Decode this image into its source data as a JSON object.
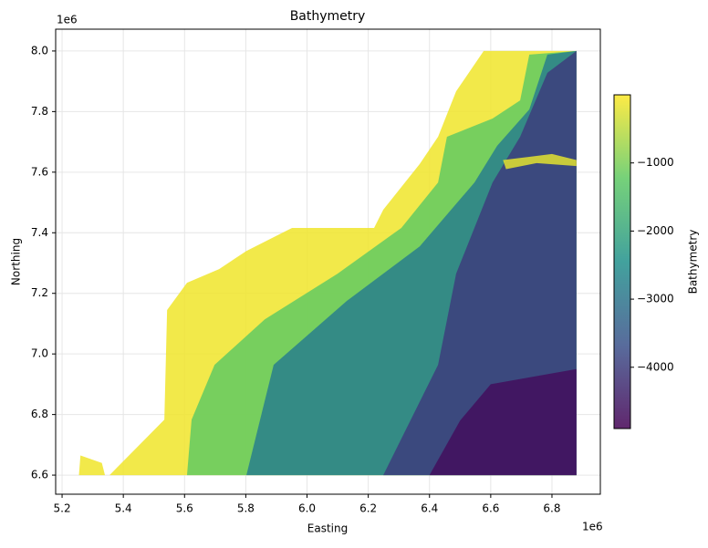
{
  "chart_data": {
    "type": "field",
    "title": "Bathymetry",
    "x_label": "Easting",
    "y_label": "Northing",
    "x_offset_label": "1e6",
    "y_offset_label": "1e6",
    "xlim": [
      5179000,
      6958000
    ],
    "ylim": [
      6537000,
      8072000
    ],
    "xticks": [
      {
        "value": 5200000,
        "label": "5.2"
      },
      {
        "value": 5400000,
        "label": "5.4"
      },
      {
        "value": 5600000,
        "label": "5.6"
      },
      {
        "value": 5800000,
        "label": "5.8"
      },
      {
        "value": 6000000,
        "label": "6.0"
      },
      {
        "value": 6200000,
        "label": "6.2"
      },
      {
        "value": 6400000,
        "label": "6.4"
      },
      {
        "value": 6600000,
        "label": "6.6"
      },
      {
        "value": 6800000,
        "label": "6.8"
      }
    ],
    "yticks": [
      {
        "value": 6600000,
        "label": "6.6"
      },
      {
        "value": 6800000,
        "label": "6.8"
      },
      {
        "value": 7000000,
        "label": "7.0"
      },
      {
        "value": 7200000,
        "label": "7.2"
      },
      {
        "value": 7400000,
        "label": "7.4"
      },
      {
        "value": 7600000,
        "label": "7.6"
      },
      {
        "value": 7800000,
        "label": "7.8"
      },
      {
        "value": 8000000,
        "label": "8.0"
      }
    ],
    "grid": true,
    "colormap": "viridis",
    "colorbar_label": "Bathymetry",
    "clim": [
      -4900,
      0
    ],
    "cticks": [
      {
        "value": -1000,
        "label": "−1000"
      },
      {
        "value": -2000,
        "label": "−2000"
      },
      {
        "value": -3000,
        "label": "−3000"
      },
      {
        "value": -4000,
        "label": "−4000"
      }
    ],
    "regions": [
      {
        "value": -100,
        "polygon": [
          [
            5355000,
            6600000
          ],
          [
            5534000,
            6783000
          ],
          [
            5543000,
            7145000
          ],
          [
            5608000,
            7235000
          ],
          [
            5713000,
            7280000
          ],
          [
            5802000,
            7340000
          ],
          [
            5951000,
            7416000
          ],
          [
            6219000,
            7416000
          ],
          [
            6249000,
            7476000
          ],
          [
            6368000,
            7627000
          ],
          [
            6428000,
            7717000
          ],
          [
            6487000,
            7867000
          ],
          [
            6577000,
            8000000
          ],
          [
            6880000,
            8000000
          ],
          [
            6880000,
            6600000
          ]
        ]
      },
      {
        "value": -100,
        "polygon": [
          [
            5255000,
            6600000
          ],
          [
            5260000,
            6665000
          ],
          [
            5330000,
            6640000
          ],
          [
            5340000,
            6600000
          ]
        ]
      },
      {
        "value": -1200,
        "polygon": [
          [
            5608000,
            6600000
          ],
          [
            5623000,
            6783000
          ],
          [
            5698000,
            6964000
          ],
          [
            5862000,
            7114000
          ],
          [
            6100000,
            7265000
          ],
          [
            6308000,
            7416000
          ],
          [
            6428000,
            7566000
          ],
          [
            6457000,
            7717000
          ],
          [
            6606000,
            7777000
          ],
          [
            6696000,
            7837000
          ],
          [
            6726000,
            7988000
          ],
          [
            6880000,
            8000000
          ],
          [
            6880000,
            6600000
          ]
        ]
      },
      {
        "value": -2800,
        "polygon": [
          [
            5802000,
            6600000
          ],
          [
            5891000,
            6964000
          ],
          [
            6130000,
            7175000
          ],
          [
            6368000,
            7355000
          ],
          [
            6547000,
            7566000
          ],
          [
            6621000,
            7687000
          ],
          [
            6726000,
            7807000
          ],
          [
            6785000,
            7988000
          ],
          [
            6880000,
            8000000
          ],
          [
            6880000,
            6600000
          ]
        ]
      },
      {
        "value": -4000,
        "polygon": [
          [
            6249000,
            6600000
          ],
          [
            6428000,
            6964000
          ],
          [
            6487000,
            7265000
          ],
          [
            6606000,
            7566000
          ],
          [
            6696000,
            7717000
          ],
          [
            6785000,
            7928000
          ],
          [
            6880000,
            8000000
          ],
          [
            6880000,
            6600000
          ]
        ]
      },
      {
        "value": -4700,
        "polygon": [
          [
            6400000,
            6600000
          ],
          [
            6500000,
            6780000
          ],
          [
            6600000,
            6900000
          ],
          [
            6880000,
            6950000
          ],
          [
            6880000,
            6600000
          ]
        ]
      },
      {
        "value": -200,
        "polygon": [
          [
            6640000,
            7640000
          ],
          [
            6720000,
            7650000
          ],
          [
            6800000,
            7660000
          ],
          [
            6880000,
            7640000
          ],
          [
            6880000,
            7620000
          ],
          [
            6750000,
            7630000
          ],
          [
            6650000,
            7610000
          ]
        ]
      }
    ]
  }
}
